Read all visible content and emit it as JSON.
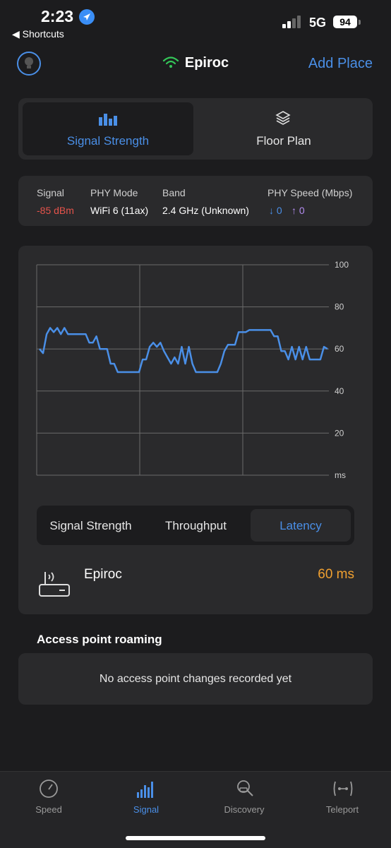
{
  "status_bar": {
    "time": "2:23",
    "back": "◀ Shortcuts",
    "network": "5G",
    "battery": "94"
  },
  "header": {
    "title": "Epiroc",
    "add_place": "Add Place"
  },
  "top_tabs": {
    "signal_strength": "Signal Strength",
    "floor_plan": "Floor Plan"
  },
  "info": {
    "signal_label": "Signal",
    "signal_value": "-85 dBm",
    "phy_mode_label": "PHY Mode",
    "phy_mode_value": "WiFi 6 (11ax)",
    "band_label": "Band",
    "band_value": "2.4 GHz (Unknown)",
    "phy_speed_label": "PHY Speed (Mbps)",
    "phy_speed_down": "↓ 0",
    "phy_speed_up": "↑ 0"
  },
  "chart_data": {
    "type": "line",
    "y_ticks": [
      "100",
      "80",
      "60",
      "40",
      "20",
      "ms"
    ],
    "ylim": [
      0,
      100
    ],
    "series": [
      {
        "values": [
          60,
          58,
          67,
          70,
          68,
          70,
          67,
          70,
          67,
          67,
          67,
          67,
          67,
          67,
          63,
          63,
          66,
          60,
          60,
          60,
          53,
          53,
          49,
          49,
          49,
          49,
          49,
          49,
          49,
          55,
          55,
          61,
          63,
          61,
          63,
          59,
          56,
          53,
          56,
          53,
          61,
          53,
          61,
          53,
          49,
          49,
          49,
          49,
          49,
          49,
          49,
          53,
          59,
          62,
          62,
          62,
          68,
          68,
          68,
          69,
          69,
          69,
          69,
          69,
          69,
          69,
          66,
          66,
          59,
          59,
          55,
          61,
          55,
          61,
          55,
          61,
          55,
          55,
          55,
          55,
          61,
          60
        ]
      }
    ],
    "line_color": "#4a8fe7"
  },
  "metric_tabs": {
    "signal_strength": "Signal Strength",
    "throughput": "Throughput",
    "latency": "Latency"
  },
  "access_point": {
    "name": "Epiroc",
    "value": "60 ms"
  },
  "roaming": {
    "title": "Access point roaming",
    "empty": "No access point changes recorded yet"
  },
  "tabbar": {
    "speed": "Speed",
    "signal": "Signal",
    "discovery": "Discovery",
    "teleport": "Teleport"
  },
  "colors": {
    "accent": "#4a8fe7",
    "danger": "#e5534b",
    "warning": "#f0a030",
    "upload": "#b38cf0",
    "wifi": "#34c759"
  }
}
